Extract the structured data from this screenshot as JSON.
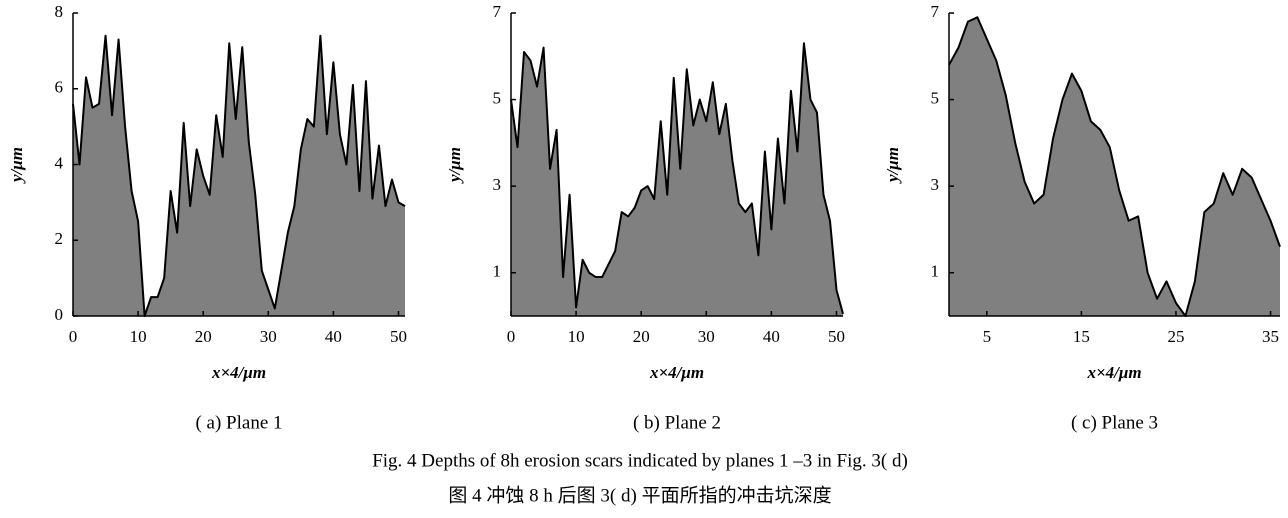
{
  "chart_data": [
    {
      "type": "area",
      "subcaption": "( a)  Plane 1",
      "xlabel": "x×4/μm",
      "ylabel": "y/μm",
      "color": "#808080",
      "x": [
        0,
        1,
        2,
        3,
        4,
        5,
        6,
        7,
        8,
        9,
        10,
        11,
        12,
        13,
        14,
        15,
        16,
        17,
        18,
        19,
        20,
        21,
        22,
        23,
        24,
        25,
        26,
        27,
        28,
        29,
        30,
        31,
        32,
        33,
        34,
        35,
        36,
        37,
        38,
        39,
        40,
        41,
        42,
        43,
        44,
        45,
        46,
        47,
        48,
        49,
        50,
        51
      ],
      "values": [
        5.6,
        4.0,
        6.3,
        5.5,
        5.6,
        7.4,
        5.3,
        7.3,
        5.0,
        3.3,
        2.5,
        0,
        0.5,
        0.5,
        1.0,
        3.3,
        2.2,
        5.1,
        2.9,
        4.4,
        3.7,
        3.2,
        5.3,
        4.2,
        7.2,
        5.2,
        7.1,
        4.6,
        3.2,
        1.2,
        0.7,
        0.2,
        1.2,
        2.2,
        2.9,
        4.4,
        5.2,
        5.0,
        7.4,
        4.8,
        6.7,
        4.8,
        4.0,
        6.1,
        3.3,
        6.2,
        3.1,
        4.5,
        2.9,
        3.6,
        3.0,
        2.9
      ],
      "xlim": [
        0,
        51
      ],
      "xticks": [
        0,
        10,
        20,
        30,
        40,
        50
      ],
      "ylim": [
        0,
        8
      ],
      "yticks": [
        0,
        2,
        4,
        6,
        8
      ]
    },
    {
      "type": "area",
      "subcaption": "( b)  Plane 2",
      "xlabel": "x×4/μm",
      "ylabel": "y/μm",
      "color": "#808080",
      "x": [
        0,
        1,
        2,
        3,
        4,
        5,
        6,
        7,
        8,
        9,
        10,
        11,
        12,
        13,
        14,
        15,
        16,
        17,
        18,
        19,
        20,
        21,
        22,
        23,
        24,
        25,
        26,
        27,
        28,
        29,
        30,
        31,
        32,
        33,
        34,
        35,
        36,
        37,
        38,
        39,
        40,
        41,
        42,
        43,
        44,
        45,
        46,
        47,
        48,
        49,
        50,
        51
      ],
      "values": [
        5.0,
        3.9,
        6.1,
        5.9,
        5.3,
        6.2,
        3.4,
        4.3,
        0.9,
        2.8,
        0.2,
        1.3,
        1.0,
        0.9,
        0.9,
        1.2,
        1.5,
        2.4,
        2.3,
        2.5,
        2.9,
        3.0,
        2.7,
        4.5,
        2.8,
        5.5,
        3.4,
        5.7,
        4.4,
        5.0,
        4.5,
        5.4,
        4.2,
        4.9,
        3.6,
        2.6,
        2.4,
        2.6,
        1.4,
        3.8,
        2.0,
        4.1,
        2.6,
        5.2,
        3.8,
        6.3,
        5.0,
        4.7,
        2.8,
        2.2,
        0.6,
        0.05
      ],
      "xlim": [
        0,
        51
      ],
      "xticks": [
        0,
        10,
        20,
        30,
        40,
        50
      ],
      "ylim": [
        0,
        7
      ],
      "yticks": [
        1,
        3,
        5,
        7
      ]
    },
    {
      "type": "area",
      "subcaption": "( c)  Plane 3",
      "xlabel": "x×4/μm",
      "ylabel": "y/μm",
      "color": "#808080",
      "x": [
        1,
        2,
        3,
        4,
        5,
        6,
        7,
        8,
        9,
        10,
        11,
        12,
        13,
        14,
        15,
        16,
        17,
        18,
        19,
        20,
        21,
        22,
        23,
        24,
        25,
        26,
        27,
        28,
        29,
        30,
        31,
        32,
        33,
        34,
        35,
        36
      ],
      "values": [
        5.8,
        6.2,
        6.8,
        6.9,
        6.4,
        5.9,
        5.1,
        4.0,
        3.1,
        2.6,
        2.8,
        4.1,
        5.0,
        5.6,
        5.2,
        4.5,
        4.3,
        3.9,
        2.9,
        2.2,
        2.3,
        1.0,
        0.4,
        0.8,
        0.3,
        0,
        0.8,
        2.4,
        2.6,
        3.3,
        2.8,
        3.4,
        3.2,
        2.7,
        2.2,
        1.6
      ],
      "xlim": [
        1,
        36
      ],
      "xticks": [
        5,
        15,
        25,
        35
      ],
      "ylim": [
        0,
        7
      ],
      "yticks": [
        1,
        3,
        5,
        7
      ]
    }
  ],
  "caption_en": "Fig. 4    Depths of 8h erosion scars indicated by planes 1 –3 in Fig.  3( d)",
  "caption_zh": "图 4    冲蚀 8 h 后图 3( d) 平面所指的冲击坑深度"
}
